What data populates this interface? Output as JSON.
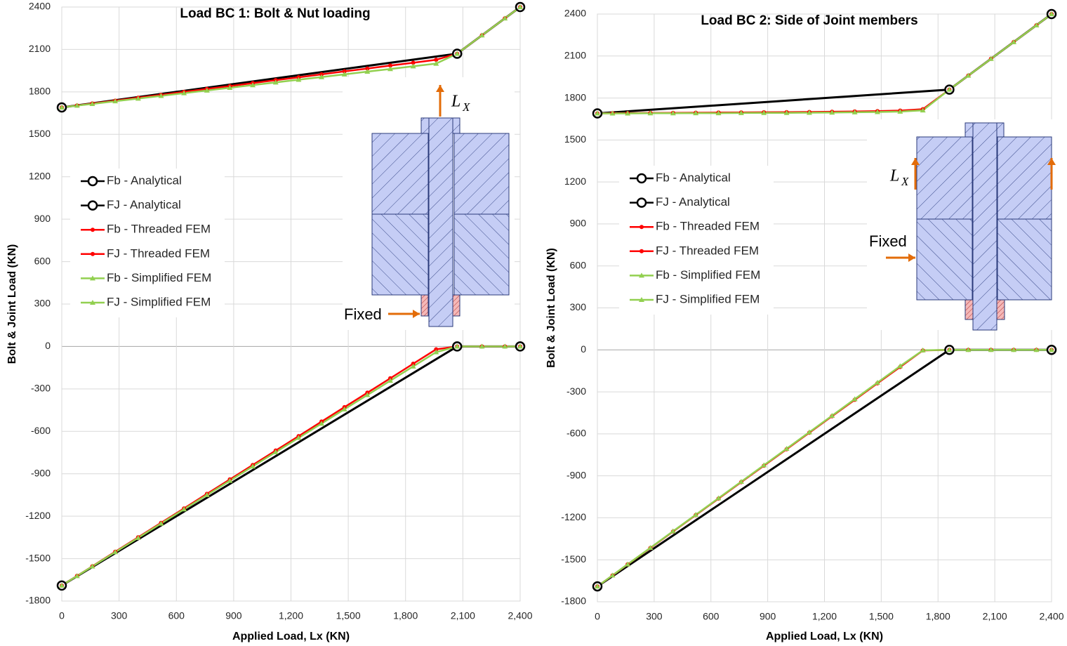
{
  "chart_data": [
    {
      "type": "line",
      "title": "Load BC 1: Bolt & Nut loading",
      "xlabel": "Applied Load, Lx (KN)",
      "ylabel": "Bolt & Joint Load (KN)",
      "xlim": [
        0,
        2400
      ],
      "ylim": [
        -1800,
        2400
      ],
      "xticks": [
        0,
        300,
        600,
        900,
        {
          "value": 1200,
          "label": "1,200"
        },
        {
          "value": 1500,
          "label": "1,500"
        },
        {
          "value": 1800,
          "label": "1,800"
        },
        {
          "value": 2100,
          "label": "2,100"
        },
        {
          "value": 2400,
          "label": "2,400"
        }
      ],
      "yticks": [
        -1800,
        -1500,
        -1200,
        -900,
        -600,
        -300,
        0,
        300,
        600,
        900,
        1200,
        1500,
        1800,
        2100,
        2400
      ],
      "grid": true,
      "legend": "center left",
      "load_label": "L",
      "load_label_subscript": "X",
      "fixed_label": "Fixed",
      "series": [
        {
          "name": "Fb - Analytical",
          "color": "#000000",
          "marker": "circle",
          "x": [
            0,
            2070,
            2400
          ],
          "values": [
            1690,
            2070,
            2400
          ]
        },
        {
          "name": "FJ - Analytical",
          "color": "#000000",
          "marker": "circle",
          "x": [
            0,
            2070,
            2400
          ],
          "values": [
            -1690,
            0,
            0
          ]
        },
        {
          "name": "Fb - Threaded FEM",
          "color": "#ff0000",
          "marker": "dot",
          "x": [
            0,
            80,
            160,
            280,
            400,
            520,
            640,
            760,
            880,
            1000,
            1120,
            1240,
            1360,
            1480,
            1600,
            1720,
            1840,
            1960,
            2070,
            2200,
            2320,
            2400
          ],
          "values": [
            1690,
            1704,
            1718,
            1738,
            1759,
            1779,
            1800,
            1821,
            1841,
            1862,
            1883,
            1903,
            1924,
            1945,
            1965,
            1986,
            2006,
            2027,
            2070,
            2200,
            2320,
            2400
          ]
        },
        {
          "name": "FJ - Threaded FEM",
          "color": "#ff0000",
          "marker": "dot",
          "x": [
            0,
            80,
            160,
            280,
            400,
            520,
            640,
            760,
            880,
            1000,
            1120,
            1240,
            1360,
            1480,
            1600,
            1720,
            1840,
            1960,
            2070,
            2200,
            2320,
            2400
          ],
          "values": [
            -1690,
            -1622,
            -1554,
            -1451,
            -1349,
            -1247,
            -1145,
            -1042,
            -940,
            -838,
            -736,
            -634,
            -531,
            -429,
            -327,
            -225,
            -122,
            -20,
            0,
            0,
            0,
            0
          ]
        },
        {
          "name": "Fb - Simplified FEM",
          "color": "#92d050",
          "marker": "triangle",
          "x": [
            0,
            80,
            160,
            280,
            400,
            520,
            640,
            760,
            880,
            1000,
            1120,
            1240,
            1360,
            1480,
            1600,
            1720,
            1840,
            1960,
            2070,
            2200,
            2320,
            2400
          ],
          "values": [
            1690,
            1703,
            1715,
            1734,
            1753,
            1772,
            1791,
            1810,
            1829,
            1848,
            1867,
            1886,
            1905,
            1924,
            1943,
            1962,
            1981,
            2000,
            2070,
            2200,
            2320,
            2400
          ]
        },
        {
          "name": "FJ - Simplified FEM",
          "color": "#92d050",
          "marker": "triangle",
          "x": [
            0,
            80,
            160,
            280,
            400,
            520,
            640,
            760,
            880,
            1000,
            1120,
            1240,
            1360,
            1480,
            1600,
            1720,
            1840,
            1960,
            2070,
            2200,
            2320,
            2400
          ],
          "values": [
            -1690,
            -1623,
            -1555,
            -1454,
            -1353,
            -1252,
            -1151,
            -1050,
            -949,
            -848,
            -747,
            -646,
            -545,
            -444,
            -343,
            -242,
            -141,
            -40,
            0,
            0,
            0,
            0
          ]
        }
      ]
    },
    {
      "type": "line",
      "title": "Load BC 2: Side of Joint members",
      "xlabel": "Applied Load, Lx (KN)",
      "ylabel": "Bolt & Joint Load (KN)",
      "xlim": [
        0,
        2400
      ],
      "ylim": [
        -1800,
        2400
      ],
      "xticks": [
        0,
        300,
        600,
        900,
        {
          "value": 1200,
          "label": "1,200"
        },
        {
          "value": 1500,
          "label": "1,500"
        },
        {
          "value": 1800,
          "label": "1,800"
        },
        {
          "value": 2100,
          "label": "2,100"
        },
        {
          "value": 2400,
          "label": "2,400"
        }
      ],
      "yticks": [
        -1800,
        -1500,
        -1200,
        -900,
        -600,
        -300,
        0,
        300,
        600,
        900,
        1200,
        1500,
        1800,
        2100,
        2400
      ],
      "grid": true,
      "legend": "center left",
      "load_label": "L",
      "load_label_subscript": "X",
      "fixed_label": "Fixed",
      "series": [
        {
          "name": "Fb - Analytical",
          "color": "#000000",
          "marker": "circle",
          "x": [
            0,
            1860,
            2400
          ],
          "values": [
            1690,
            1860,
            2400
          ]
        },
        {
          "name": "FJ - Analytical",
          "color": "#000000",
          "marker": "circle",
          "x": [
            0,
            1860,
            2400
          ],
          "values": [
            -1690,
            0,
            0
          ]
        },
        {
          "name": "Fb - Threaded FEM",
          "color": "#ff0000",
          "marker": "dot",
          "x": [
            0,
            80,
            160,
            280,
            400,
            520,
            640,
            760,
            880,
            1000,
            1120,
            1240,
            1360,
            1480,
            1600,
            1720,
            1860,
            1960,
            2080,
            2200,
            2320,
            2400
          ],
          "values": [
            1690,
            1691,
            1692,
            1693,
            1694,
            1695,
            1696,
            1697,
            1698,
            1699,
            1700,
            1702,
            1704,
            1706,
            1710,
            1720,
            1860,
            1960,
            2080,
            2200,
            2320,
            2400
          ]
        },
        {
          "name": "FJ - Threaded FEM",
          "color": "#ff0000",
          "marker": "dot",
          "x": [
            0,
            80,
            160,
            280,
            400,
            520,
            640,
            760,
            880,
            1000,
            1120,
            1240,
            1360,
            1480,
            1600,
            1720,
            1860,
            1960,
            2080,
            2200,
            2320,
            2400
          ],
          "values": [
            -1690,
            -1612,
            -1533,
            -1416,
            -1298,
            -1180,
            -1063,
            -945,
            -828,
            -710,
            -592,
            -474,
            -357,
            -239,
            -122,
            -4,
            0,
            0,
            0,
            0,
            0,
            0
          ]
        },
        {
          "name": "Fb - Simplified FEM",
          "color": "#92d050",
          "marker": "triangle",
          "x": [
            0,
            80,
            160,
            280,
            400,
            520,
            640,
            760,
            880,
            1000,
            1120,
            1240,
            1360,
            1480,
            1600,
            1720,
            1860,
            1960,
            2080,
            2200,
            2320,
            2400
          ],
          "values": [
            1690,
            1690,
            1690,
            1691,
            1691,
            1692,
            1692,
            1693,
            1694,
            1694,
            1695,
            1696,
            1698,
            1700,
            1703,
            1712,
            1860,
            1960,
            2080,
            2200,
            2320,
            2400
          ]
        },
        {
          "name": "FJ - Simplified FEM",
          "color": "#92d050",
          "marker": "triangle",
          "x": [
            0,
            80,
            160,
            280,
            400,
            520,
            640,
            760,
            880,
            1000,
            1120,
            1240,
            1360,
            1480,
            1600,
            1720,
            1860,
            1960,
            2080,
            2200,
            2320,
            2400
          ],
          "values": [
            -1690,
            -1611,
            -1532,
            -1414,
            -1296,
            -1178,
            -1060,
            -942,
            -824,
            -706,
            -588,
            -470,
            -352,
            -234,
            -116,
            -3,
            0,
            0,
            0,
            0,
            0,
            0
          ]
        }
      ]
    }
  ]
}
